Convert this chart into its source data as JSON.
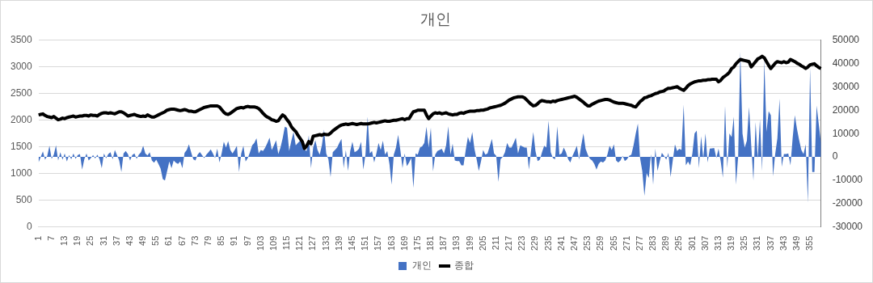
{
  "chart_data": {
    "type": "line",
    "title": "개인",
    "legend": "bottom",
    "grid": "y",
    "categories": [
      "1",
      null,
      null,
      null,
      null,
      null,
      "7",
      null,
      null,
      null,
      null,
      null,
      "13",
      null,
      null,
      null,
      null,
      null,
      "19",
      null,
      null,
      null,
      null,
      null,
      "25",
      null,
      null,
      null,
      null,
      null,
      "31",
      null,
      null,
      null,
      null,
      null,
      "37",
      null,
      null,
      null,
      null,
      null,
      "43",
      null,
      null,
      null,
      null,
      null,
      "49",
      null,
      null,
      null,
      null,
      null,
      "55",
      null,
      null,
      null,
      null,
      null,
      "61",
      null,
      null,
      null,
      null,
      null,
      "67",
      null,
      null,
      null,
      null,
      null,
      "73",
      null,
      null,
      null,
      null,
      null,
      "79",
      null,
      null,
      null,
      null,
      null,
      "85",
      null,
      null,
      null,
      null,
      null,
      "91",
      null,
      null,
      null,
      null,
      null,
      "97",
      null,
      null,
      null,
      null,
      null,
      "103",
      null,
      null,
      null,
      null,
      null,
      "109",
      null,
      null,
      null,
      null,
      null,
      "115",
      null,
      null,
      null,
      null,
      null,
      "121",
      null,
      null,
      null,
      null,
      null,
      "127",
      null,
      null,
      null,
      null,
      null,
      "133",
      null,
      null,
      null,
      null,
      null,
      "139",
      null,
      null,
      null,
      null,
      null,
      "145",
      null,
      null,
      null,
      null,
      null,
      "151",
      null,
      null,
      null,
      null,
      null,
      "157",
      null,
      null,
      null,
      null,
      null,
      "163",
      null,
      null,
      null,
      null,
      null,
      "169",
      null,
      null,
      null,
      null,
      null,
      "175",
      null,
      null,
      null,
      null,
      null,
      "181",
      null,
      null,
      null,
      null,
      null,
      "187",
      null,
      null,
      null,
      null,
      null,
      "193",
      null,
      null,
      null,
      null,
      null,
      "199",
      null,
      null,
      null,
      null,
      null,
      "205",
      null,
      null,
      null,
      null,
      null,
      "211",
      null,
      null,
      null,
      null,
      null,
      "217",
      null,
      null,
      null,
      null,
      null,
      "223",
      null,
      null,
      null,
      null,
      null,
      "229",
      null,
      null,
      null,
      null,
      null,
      "235",
      null,
      null,
      null,
      null,
      null,
      "241",
      null,
      null,
      null,
      null,
      null,
      "247",
      null,
      null,
      null,
      null,
      null,
      "253",
      null,
      null,
      null,
      null,
      null,
      "259",
      null,
      null,
      null,
      null,
      null,
      "265",
      null,
      null,
      null,
      null,
      null,
      "271",
      null,
      null,
      null,
      null,
      null,
      "277",
      null,
      null,
      null,
      null,
      null,
      "283",
      null,
      null,
      null,
      null,
      null,
      "289",
      null,
      null,
      null,
      null,
      null,
      "295",
      null,
      null,
      null,
      null,
      null,
      "301",
      null,
      null,
      null,
      null,
      null,
      "307",
      null,
      null,
      null,
      null,
      null,
      "313",
      null,
      null,
      null,
      null,
      null,
      "319",
      null,
      null,
      null,
      null,
      null,
      "325",
      null,
      null,
      null,
      null,
      null,
      "331",
      null,
      null,
      null,
      null,
      null,
      "337",
      null,
      null,
      null,
      null,
      null,
      "343",
      null,
      null,
      null,
      null,
      null,
      "349",
      null,
      null,
      null,
      null,
      null,
      "355",
      null,
      null,
      null,
      null,
      null
    ],
    "ylim": [
      0,
      3500
    ],
    "yticks": [
      0,
      500,
      1000,
      1500,
      2000,
      2500,
      3000,
      3500
    ],
    "y2lim": [
      -30000,
      50000
    ],
    "y2ticks": [
      -30000,
      -20000,
      -10000,
      0,
      10000,
      20000,
      30000,
      40000,
      50000
    ],
    "series": [
      {
        "name": "개인",
        "type": "area",
        "axis": "y2",
        "color": "#4472c4",
        "values": [
          -2400,
          0,
          2400,
          -1200,
          500,
          4800,
          -800,
          1000,
          5000,
          -1500,
          2000,
          -1200,
          1500,
          -2000,
          800,
          -1000,
          1500,
          -800,
          800,
          1200,
          -5400,
          -1000,
          1500,
          -1500,
          -500,
          800,
          -700,
          1000,
          -1000,
          -4800,
          1500,
          -600,
          1200,
          2000,
          -1000,
          3000,
          800,
          -1500,
          -6500,
          1500,
          2500,
          1200,
          -1500,
          800,
          1500,
          -800,
          1000,
          2000,
          4800,
          1500,
          600,
          2000,
          -1500,
          -2500,
          -1200,
          -3000,
          -5000,
          -9500,
          -10100,
          -6000,
          -2000,
          -4800,
          -1500,
          -2500,
          -3000,
          -2000,
          -4800,
          1800,
          3000,
          5400,
          2000,
          -1000,
          -1500,
          1000,
          2100,
          800,
          -500,
          1000,
          2000,
          3200,
          1500,
          -500,
          3600,
          -2400,
          1500,
          6500,
          4000,
          6800,
          3000,
          1500,
          3000,
          4800,
          -6500,
          1500,
          4800,
          -2000,
          -500,
          2000,
          5000,
          6000,
          8000,
          1500,
          3000,
          2500,
          4000,
          6000,
          8300,
          3000,
          5000,
          7100,
          1200,
          4000,
          8000,
          12900,
          12500,
          2500,
          7000,
          10700,
          5000,
          6000,
          7000,
          7100,
          3000,
          2500,
          9300,
          -4800,
          4000,
          7100,
          3000,
          1000,
          5000,
          11700,
          1500,
          -1000,
          -8600,
          2000,
          3000,
          4000,
          6000,
          7700,
          -4800,
          3000,
          -6000,
          2500,
          6500,
          2000,
          2500,
          3500,
          6500,
          -5400,
          1000,
          17300,
          1500,
          2500,
          -2400,
          1500,
          6000,
          3000,
          7000,
          1000,
          2500,
          -3000,
          -11900,
          1000,
          4000,
          9500,
          3000,
          -4800,
          1500,
          -4000,
          -2400,
          -500,
          -13300,
          1500,
          1000,
          4000,
          4500,
          6000,
          12900,
          4000,
          12500,
          -6200,
          1000,
          2500,
          3000,
          3500,
          1500,
          5000,
          13100,
          1000,
          5700,
          -1500,
          -1800,
          -1800,
          -3600,
          -3600,
          3000,
          8600,
          6000,
          10700,
          3500,
          -1000,
          -6000,
          -2000,
          3000,
          1000,
          1500,
          4500,
          7700,
          1500,
          500,
          -10700,
          -1000,
          0,
          2000,
          6000,
          4000,
          4000,
          6000,
          8300,
          1500,
          5000,
          4500,
          4000,
          4000,
          -5400,
          3000,
          10700,
          2500,
          -1800,
          -1200,
          2000,
          4800,
          4000,
          15500,
          2000,
          -500,
          -1000,
          13100,
          1000,
          1500,
          4000,
          2000,
          -1000,
          -2400,
          500,
          2500,
          4800,
          -1200,
          5000,
          10100,
          3500,
          1000,
          -800,
          -1500,
          -3000,
          -5400,
          -3000,
          -2000,
          -2400,
          -1500,
          1000,
          4800,
          3000,
          5400,
          -1500,
          -2400,
          -1500,
          500,
          -1800,
          -1000,
          500,
          1000,
          5000,
          10000,
          14300,
          -600,
          -6000,
          -16700,
          -7000,
          -9000,
          1200,
          -11900,
          3600,
          -6000,
          -2000,
          1800,
          500,
          -1200,
          1800,
          -8600,
          -1500,
          5400,
          2500,
          3500,
          3000,
          22400,
          -3600,
          -2000,
          -3600,
          1500,
          10100,
          11300,
          -4800,
          8900,
          -600,
          10100,
          -2400,
          3600,
          3700,
          3800,
          -500,
          3600,
          -2000,
          -8900,
          22000,
          -4800,
          10100,
          8500,
          17300,
          -11900,
          0,
          45200,
          10000,
          4000,
          7000,
          21400,
          5000,
          -10100,
          14900,
          -600,
          16100,
          -6000,
          41700,
          10800,
          19600,
          17900,
          -8300,
          1200,
          8000,
          25000,
          -4200,
          1200,
          1200,
          1500,
          -3600,
          8000,
          17900,
          12000,
          7100,
          3000,
          1200,
          5400,
          -19600,
          38300,
          -6500,
          -6500,
          22000,
          14000,
          6000
        ]
      },
      {
        "name": "종합",
        "type": "line",
        "axis": "y",
        "color": "#000000",
        "values": [
          2100,
          2110,
          2120,
          2090,
          2070,
          2060,
          2050,
          2070,
          2040,
          2010,
          2020,
          2040,
          2030,
          2050,
          2060,
          2070,
          2080,
          2060,
          2070,
          2080,
          2080,
          2090,
          2090,
          2080,
          2100,
          2090,
          2090,
          2080,
          2110,
          2130,
          2140,
          2140,
          2130,
          2140,
          2130,
          2120,
          2140,
          2160,
          2160,
          2140,
          2110,
          2080,
          2090,
          2100,
          2110,
          2090,
          2080,
          2070,
          2080,
          2070,
          2100,
          2080,
          2060,
          2060,
          2080,
          2100,
          2120,
          2140,
          2160,
          2190,
          2200,
          2210,
          2210,
          2200,
          2190,
          2180,
          2190,
          2200,
          2190,
          2170,
          2170,
          2160,
          2160,
          2180,
          2200,
          2220,
          2240,
          2250,
          2260,
          2270,
          2270,
          2270,
          2270,
          2250,
          2200,
          2150,
          2120,
          2110,
          2130,
          2160,
          2190,
          2220,
          2230,
          2240,
          2230,
          2250,
          2260,
          2250,
          2250,
          2250,
          2240,
          2220,
          2180,
          2130,
          2090,
          2060,
          2040,
          2010,
          2000,
          1980,
          1990,
          2050,
          2100,
          2070,
          2010,
          1960,
          1880,
          1830,
          1790,
          1720,
          1660,
          1600,
          1470,
          1520,
          1600,
          1560,
          1700,
          1710,
          1720,
          1730,
          1720,
          1740,
          1730,
          1730,
          1760,
          1800,
          1830,
          1860,
          1890,
          1910,
          1920,
          1930,
          1920,
          1930,
          1940,
          1930,
          1920,
          1930,
          1940,
          1930,
          1930,
          1930,
          1940,
          1950,
          1960,
          1950,
          1960,
          1970,
          1980,
          1990,
          1980,
          1980,
          1990,
          2000,
          2000,
          2010,
          2020,
          2030,
          2010,
          2030,
          2030,
          2100,
          2160,
          2170,
          2190,
          2190,
          2190,
          2190,
          2100,
          2030,
          2080,
          2120,
          2140,
          2130,
          2140,
          2120,
          2130,
          2140,
          2120,
          2110,
          2100,
          2110,
          2110,
          2130,
          2140,
          2130,
          2150,
          2160,
          2170,
          2170,
          2170,
          2180,
          2180,
          2190,
          2190,
          2200,
          2210,
          2230,
          2240,
          2250,
          2260,
          2270,
          2280,
          2300,
          2320,
          2350,
          2380,
          2400,
          2420,
          2430,
          2440,
          2440,
          2440,
          2420,
          2380,
          2340,
          2300,
          2270,
          2280,
          2310,
          2350,
          2370,
          2360,
          2350,
          2350,
          2340,
          2360,
          2350,
          2370,
          2380,
          2390,
          2400,
          2410,
          2420,
          2430,
          2440,
          2450,
          2430,
          2400,
          2370,
          2340,
          2300,
          2270,
          2270,
          2300,
          2320,
          2340,
          2360,
          2370,
          2380,
          2390,
          2390,
          2380,
          2360,
          2340,
          2330,
          2320,
          2320,
          2320,
          2310,
          2300,
          2290,
          2280,
          2260,
          2250,
          2300,
          2350,
          2380,
          2420,
          2430,
          2450,
          2460,
          2480,
          2500,
          2510,
          2530,
          2540,
          2550,
          2580,
          2600,
          2600,
          2610,
          2620,
          2630,
          2600,
          2580,
          2560,
          2600,
          2650,
          2680,
          2700,
          2720,
          2730,
          2740,
          2740,
          2750,
          2750,
          2760,
          2760,
          2770,
          2770,
          2770,
          2720,
          2750,
          2800,
          2830,
          2860,
          2900,
          2970,
          3000,
          3060,
          3100,
          3140,
          3130,
          3120,
          3110,
          3100,
          3000,
          3050,
          3100,
          3150,
          3170,
          3200,
          3170,
          3100,
          3030,
          2970,
          3020,
          3070,
          3100,
          3090,
          3080,
          3100,
          3080,
          3090,
          3140,
          3120,
          3100,
          3070,
          3050,
          3020,
          3000,
          2970,
          3000,
          3040,
          3050,
          3060,
          3020,
          2990,
          2970
        ]
      }
    ]
  }
}
